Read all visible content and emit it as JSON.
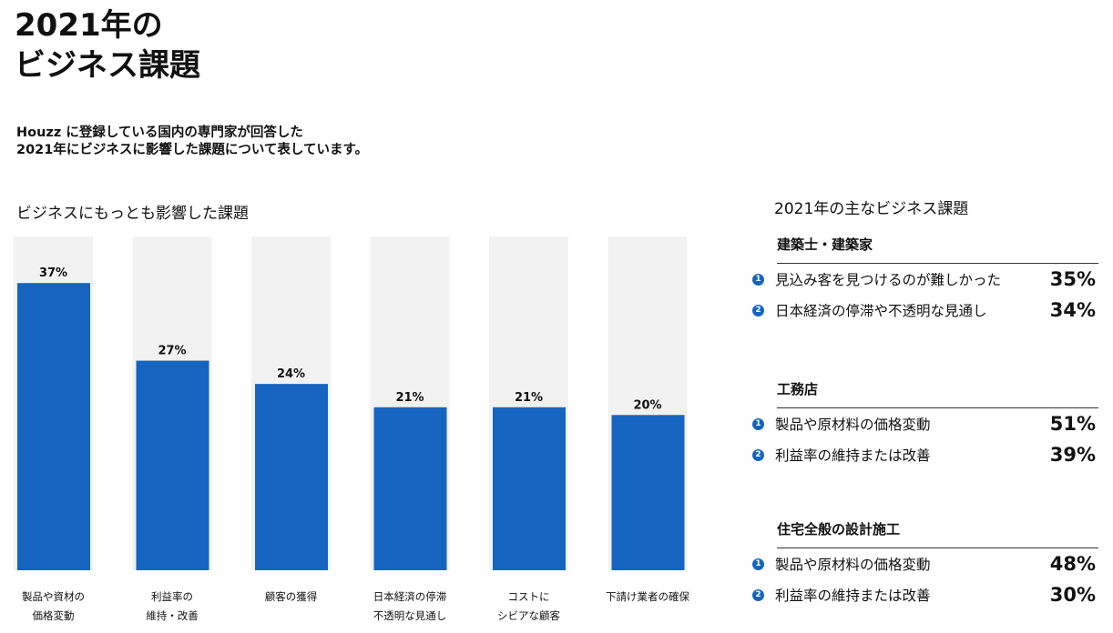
{
  "header": {
    "title_line1": "2021年の",
    "title_line2": "ビジネス課題",
    "desc_line1": "Houzz に登録している国内の専門家が回答した",
    "desc_line2": "2021年にビジネスに影響した課題について表しています。"
  },
  "chart_title": "ビジネスにもっとも影響した課題",
  "chart_data": {
    "type": "bar",
    "title": "ビジネスにもっとも影響した課題",
    "categories": [
      [
        "製品や資材の",
        "価格変動"
      ],
      [
        "利益率の",
        "維持・改善"
      ],
      [
        "顧客の獲得"
      ],
      [
        "日本経済の停滞",
        "不透明な見通し"
      ],
      [
        "コストに",
        "シビアな顧客"
      ],
      [
        "下請け業者の確保"
      ]
    ],
    "values": [
      37,
      27,
      24,
      21,
      21,
      20
    ],
    "value_labels": [
      "37%",
      "27%",
      "24%",
      "21%",
      "21%",
      "20%"
    ],
    "ylim": [
      0,
      43
    ],
    "colors": {
      "bar": "#1565c0",
      "track": "#f2f2f2"
    }
  },
  "side": {
    "title": "2021年の主なビジネス課題",
    "sections": [
      {
        "heading": "建築士・建築家",
        "items": [
          {
            "num": "1",
            "label": "見込み客を見つけるのが難しかった",
            "value": "35%"
          },
          {
            "num": "2",
            "label": "日本経済の停滞や不透明な見通し",
            "value": "34%"
          }
        ]
      },
      {
        "heading": "工務店",
        "items": [
          {
            "num": "1",
            "label": "製品や原材料の価格変動",
            "value": "51%"
          },
          {
            "num": "2",
            "label": "利益率の維持または改善",
            "value": "39%"
          }
        ]
      },
      {
        "heading": "住宅全般の設計施工",
        "items": [
          {
            "num": "1",
            "label": "製品や原材料の価格変動",
            "value": "48%"
          },
          {
            "num": "2",
            "label": "利益率の維持または改善",
            "value": "30%"
          }
        ]
      }
    ]
  }
}
